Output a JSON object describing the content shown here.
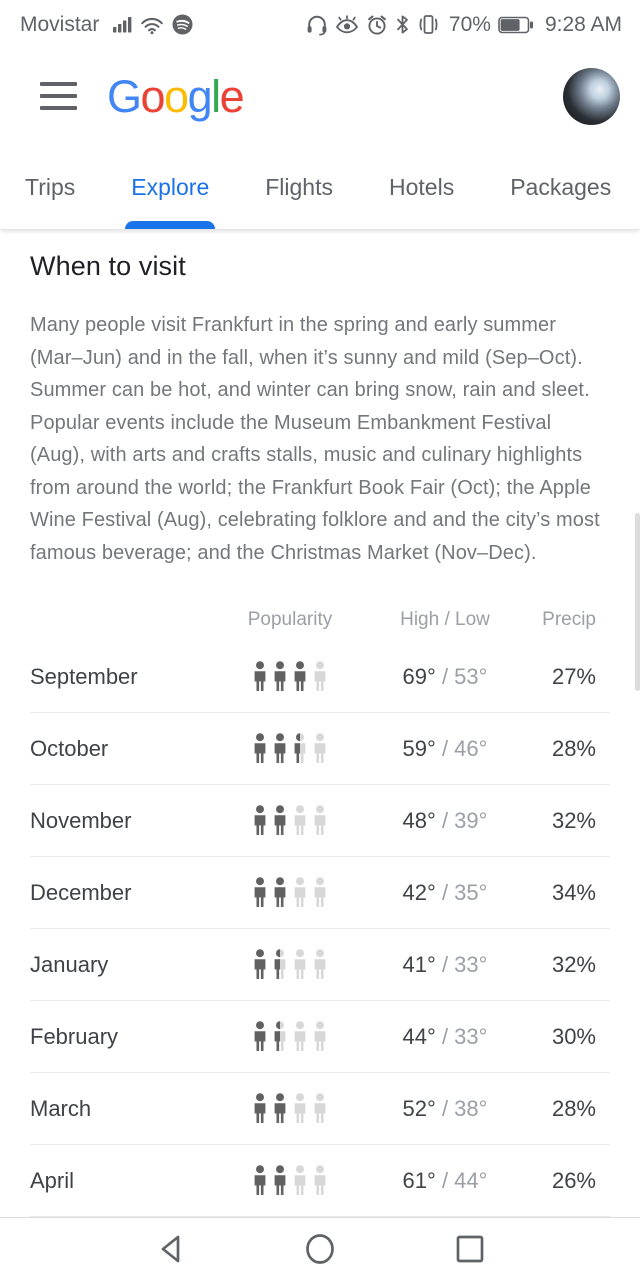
{
  "status_bar": {
    "carrier": "Movistar",
    "battery_percent": "70%",
    "time": "9:28 AM",
    "left_icons": [
      "signal-icon",
      "wifi-icon",
      "spotify-icon"
    ],
    "right_icons": [
      "headset-icon",
      "eye-icon",
      "alarm-icon",
      "bluetooth-icon",
      "vibrate-icon",
      "battery-icon"
    ]
  },
  "app_bar": {
    "logo": [
      {
        "ch": "G",
        "color": "#4285F4"
      },
      {
        "ch": "o",
        "color": "#EA4335"
      },
      {
        "ch": "o",
        "color": "#FBBC05"
      },
      {
        "ch": "g",
        "color": "#4285F4"
      },
      {
        "ch": "l",
        "color": "#34A853"
      },
      {
        "ch": "e",
        "color": "#EA4335"
      }
    ]
  },
  "tabs": {
    "active_color": "#1a73e8",
    "items": [
      {
        "label": "Trips",
        "active": false
      },
      {
        "label": "Explore",
        "active": true
      },
      {
        "label": "Flights",
        "active": false
      },
      {
        "label": "Hotels",
        "active": false
      },
      {
        "label": "Packages",
        "active": false
      }
    ]
  },
  "section": {
    "heading": "When to visit",
    "paragraph": "Many people visit Frankfurt in the spring and early summer (Mar–Jun) and in the fall, when it’s sunny and mild (Sep–Oct). Summer can be hot, and winter can bring snow, rain and sleet. Popular events include the Museum Embankment Festival (Aug), with arts and crafts stalls, music and culinary highlights from around the world; the Frankfurt Book Fair (Oct); the Apple Wine Festival (Aug), celebrating folklore and and the city’s most famous beverage; and the Christmas Market (Nov–Dec)."
  },
  "table": {
    "headers": {
      "popularity": "Popularity",
      "high_low": "High / Low",
      "precip": "Precip"
    },
    "separator": " / ",
    "popularity_max": 4,
    "rows": [
      {
        "month": "September",
        "popularity": 3,
        "high": "69°",
        "low": "53°",
        "precip": "27%"
      },
      {
        "month": "October",
        "popularity": 2.5,
        "high": "59°",
        "low": "46°",
        "precip": "28%"
      },
      {
        "month": "November",
        "popularity": 2,
        "high": "48°",
        "low": "39°",
        "precip": "32%"
      },
      {
        "month": "December",
        "popularity": 2,
        "high": "42°",
        "low": "35°",
        "precip": "34%"
      },
      {
        "month": "January",
        "popularity": 1.5,
        "high": "41°",
        "low": "33°",
        "precip": "32%"
      },
      {
        "month": "February",
        "popularity": 1.5,
        "high": "44°",
        "low": "33°",
        "precip": "30%"
      },
      {
        "month": "March",
        "popularity": 2,
        "high": "52°",
        "low": "38°",
        "precip": "28%"
      },
      {
        "month": "April",
        "popularity": 2,
        "high": "61°",
        "low": "44°",
        "precip": "26%"
      }
    ]
  },
  "nav_bar": {
    "buttons": [
      "back",
      "home",
      "recents"
    ]
  },
  "colors": {
    "accent": "#1a73e8",
    "person_dark": "#616161",
    "person_light": "#d8d8d8",
    "text_primary": "#3f4348",
    "text_secondary": "#73777b",
    "text_muted": "#9aa0a6",
    "status_gray": "#5f6368"
  }
}
